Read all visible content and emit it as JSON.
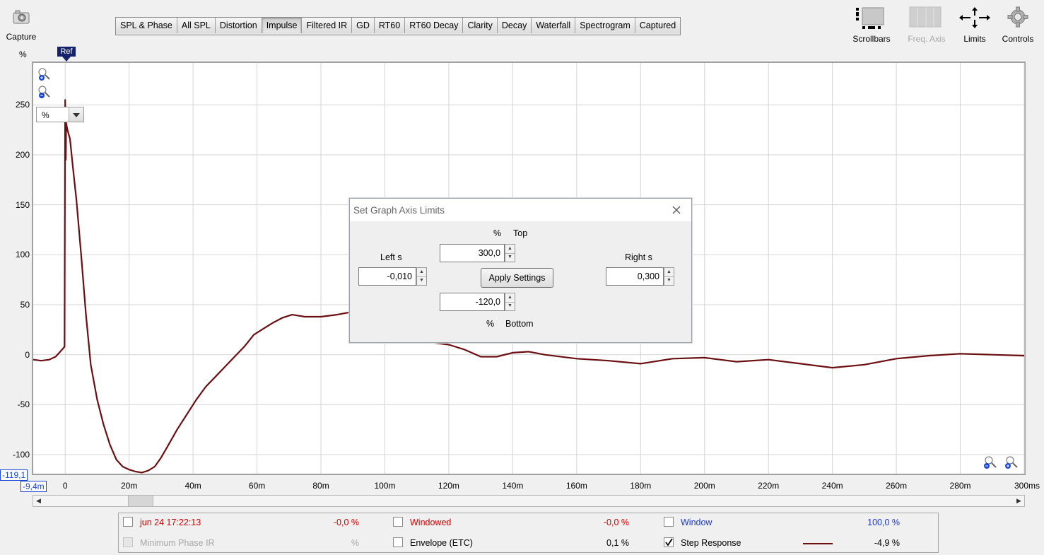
{
  "toolbar": {
    "capture_label": "Capture",
    "tabs": [
      "SPL & Phase",
      "All SPL",
      "Distortion",
      "Impulse",
      "Filtered IR",
      "GD",
      "RT60",
      "RT60 Decay",
      "Clarity",
      "Decay",
      "Waterfall",
      "Spectrogram",
      "Captured"
    ],
    "active_tab": "Impulse",
    "right_tools": {
      "scrollbars": "Scrollbars",
      "freq_axis": "Freq. Axis",
      "limits": "Limits",
      "controls": "Controls"
    }
  },
  "graph": {
    "y_unit": "%",
    "ref_label": "Ref",
    "unit_select_value": "%",
    "y_min_readout": "-119,1",
    "x_min_readout": "-9,4m",
    "y_ticks": [
      "250",
      "200",
      "150",
      "100",
      "50",
      "0",
      "-50",
      "-100"
    ],
    "x_ticks": [
      "0",
      "20m",
      "40m",
      "60m",
      "80m",
      "100m",
      "120m",
      "140m",
      "160m",
      "180m",
      "200m",
      "220m",
      "240m",
      "260m",
      "280m",
      "300ms"
    ],
    "trace_color": "#6b0f12"
  },
  "chart_data": {
    "type": "line",
    "xlabel": "",
    "ylabel": "%",
    "xlim": [
      -0.01,
      0.3
    ],
    "ylim": [
      -120,
      300
    ],
    "grid": true,
    "series": [
      {
        "x": [
          -0.01,
          -0.0075,
          -0.005,
          -0.003,
          -0.001,
          -0.0002,
          0.0,
          0.0002,
          0.0003,
          0.0007,
          0.0015,
          0.0025,
          0.0035,
          0.005,
          0.0065,
          0.008,
          0.01,
          0.012,
          0.014,
          0.016,
          0.018,
          0.02,
          0.022,
          0.024,
          0.026,
          0.028,
          0.03,
          0.032,
          0.035,
          0.038,
          0.041,
          0.044,
          0.047,
          0.05,
          0.053,
          0.056,
          0.059,
          0.062,
          0.065,
          0.068,
          0.071,
          0.075,
          0.08,
          0.085,
          0.09,
          0.095,
          0.1,
          0.105,
          0.11,
          0.115,
          0.12,
          0.125,
          0.13,
          0.135,
          0.14,
          0.145,
          0.15,
          0.16,
          0.17,
          0.18,
          0.19,
          0.2,
          0.21,
          0.22,
          0.23,
          0.24,
          0.25,
          0.26,
          0.27,
          0.28,
          0.29,
          0.3
        ],
        "values": [
          -5,
          -6,
          -5,
          -2,
          5,
          8,
          255,
          195,
          232,
          225,
          216,
          185,
          155,
          100,
          40,
          -10,
          -45,
          -70,
          -90,
          -105,
          -112,
          -115,
          -117,
          -118,
          -116,
          -112,
          -103,
          -92,
          -75,
          -60,
          -45,
          -32,
          -22,
          -12,
          -2,
          8,
          20,
          26,
          32,
          37,
          40,
          38,
          38,
          40,
          43,
          45,
          40,
          25,
          15,
          12,
          10,
          5,
          -2,
          -2,
          2,
          3,
          0,
          -4,
          -6,
          -9,
          -4,
          -3,
          -7,
          -5,
          -9,
          -13,
          -10,
          -4,
          -1,
          1,
          0,
          -1
        ]
      }
    ]
  },
  "dialog": {
    "title": "Set Graph Axis Limits",
    "top_unit": "%",
    "top_label": "Top",
    "top_value": "300,0",
    "bottom_unit": "%",
    "bottom_label": "Bottom",
    "bottom_value": "-120,0",
    "left_label": "Left s",
    "left_value": "-0,010",
    "right_label": "Right s",
    "right_value": "0,300",
    "apply_label": "Apply Settings"
  },
  "legend": {
    "rows": [
      [
        {
          "label": "jun 24 17:22:13",
          "value": "-0,0 %",
          "checked": false,
          "enabled": true,
          "color": "#d20000"
        },
        {
          "label": "Windowed",
          "value": "-0,0 %",
          "checked": false,
          "enabled": true,
          "color": "#d20000"
        },
        {
          "label": "Window",
          "value": "100,0 %",
          "checked": false,
          "enabled": true,
          "color": "#1a35d2"
        }
      ],
      [
        {
          "label": "Minimum Phase IR",
          "value": "%",
          "checked": false,
          "enabled": false,
          "color": "#a8a8a8"
        },
        {
          "label": "Envelope (ETC)",
          "value": "0,1 %",
          "checked": false,
          "enabled": true,
          "color": "#000000"
        },
        {
          "label": "Step Response",
          "value": "-4,9 %",
          "checked": true,
          "enabled": true,
          "color": "#000000"
        }
      ]
    ]
  }
}
